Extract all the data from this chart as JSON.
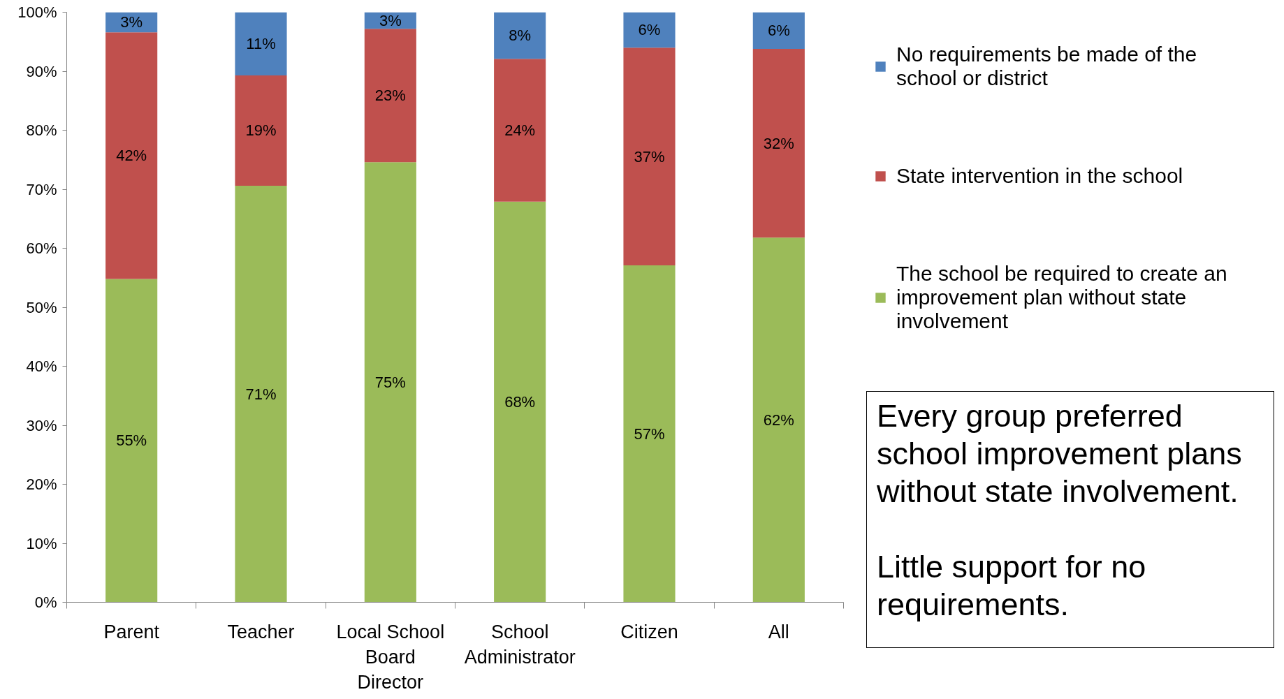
{
  "chart_data": {
    "type": "bar",
    "stacked": true,
    "categories": [
      "Parent",
      "Teacher",
      "Local School Board Director",
      "School Administrator",
      "Citizen",
      "All"
    ],
    "series": [
      {
        "name": "The school be required to create an improvement plan without state involvement",
        "color": "#9bbb59",
        "values": [
          54.8,
          70.6,
          74.6,
          67.9,
          57.1,
          61.8
        ],
        "value_labels": [
          "55%",
          "71%",
          "75%",
          "68%",
          "57%",
          "62%"
        ]
      },
      {
        "name": "State intervention in the school",
        "color": "#c0504d",
        "values": [
          41.8,
          18.7,
          22.6,
          24.2,
          36.9,
          32.0
        ],
        "value_labels": [
          "42%",
          "19%",
          "23%",
          "24%",
          "37%",
          "32%"
        ]
      },
      {
        "name": "No requirements be made of the school or district",
        "color": "#4f81bd",
        "values": [
          3.4,
          10.7,
          2.8,
          7.9,
          6.0,
          6.2
        ],
        "value_labels": [
          "3%",
          "11%",
          "3%",
          "8%",
          "6%",
          "6%"
        ]
      }
    ],
    "ylim": [
      0,
      100
    ],
    "yticks": [
      {
        "value": 0,
        "label": "0%"
      },
      {
        "value": 10,
        "label": "10%"
      },
      {
        "value": 20,
        "label": "20%"
      },
      {
        "value": 30,
        "label": "30%"
      },
      {
        "value": 40,
        "label": "40%"
      },
      {
        "value": 50,
        "label": "50%"
      },
      {
        "value": 60,
        "label": "60%"
      },
      {
        "value": 70,
        "label": "70%"
      },
      {
        "value": 80,
        "label": "80%"
      },
      {
        "value": 90,
        "label": "90%"
      },
      {
        "value": 100,
        "label": "100%"
      }
    ],
    "legend": "right",
    "annotations": [
      "Every group preferred school improvement plans without state involvement.",
      "Little support for no requirements."
    ]
  }
}
